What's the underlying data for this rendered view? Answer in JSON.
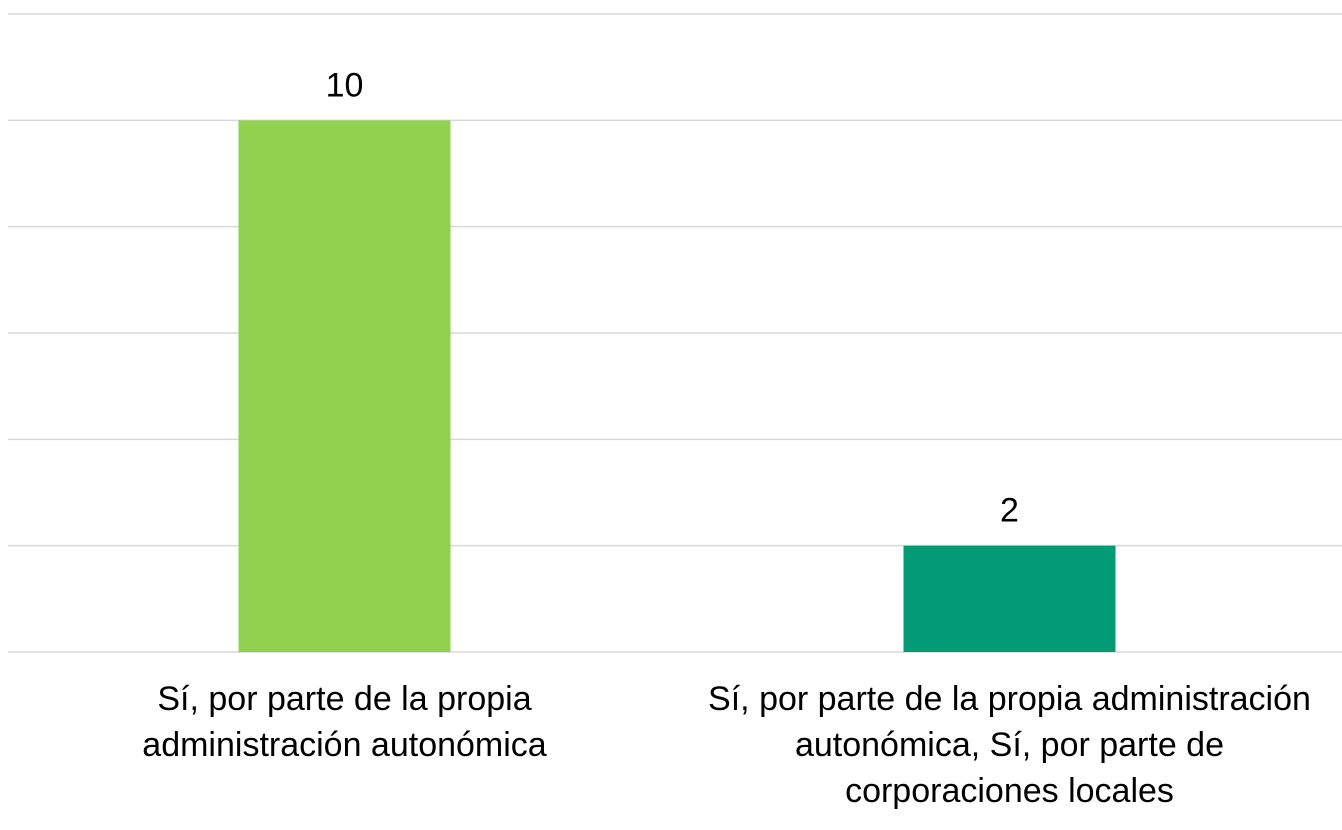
{
  "chart_data": {
    "type": "bar",
    "categories": [
      "Sí, por parte de la propia administración autonómica",
      "Sí, por parte de la propia administración autonómica, Sí, por parte de corporaciones locales"
    ],
    "values": [
      10,
      2
    ],
    "colors": [
      "#92d050",
      "#039a76"
    ],
    "ylim": [
      0,
      12
    ],
    "yticks": [
      0,
      2,
      4,
      6,
      8,
      10,
      12
    ],
    "grid": true
  }
}
